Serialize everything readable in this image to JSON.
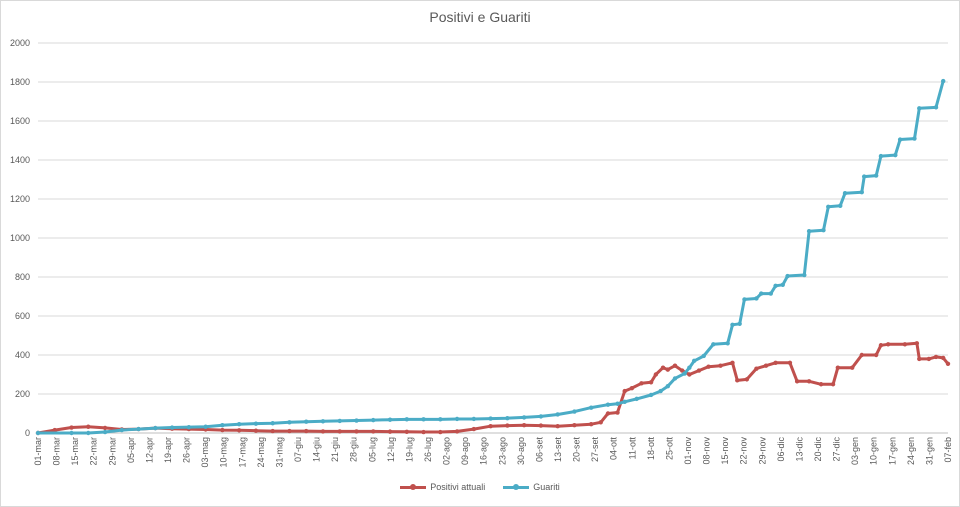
{
  "chart_data": {
    "type": "line",
    "title": "Positivi e Guariti",
    "ylim": [
      0,
      2000
    ],
    "y_ticks": [
      0,
      200,
      400,
      600,
      800,
      1000,
      1200,
      1400,
      1600,
      1800,
      2000
    ],
    "grid": true,
    "legend_position": "bottom",
    "x_start": "01-mar",
    "x_end": "07-feb",
    "categories": [
      "01-mar",
      "08-mar",
      "15-mar",
      "22-mar",
      "29-mar",
      "05-apr",
      "12-apr",
      "19-apr",
      "26-apr",
      "03-mag",
      "10-mag",
      "17-mag",
      "24-mag",
      "31-mag",
      "07-giu",
      "14-giu",
      "21-giu",
      "28-giu",
      "05-lug",
      "12-lug",
      "19-lug",
      "26-lug",
      "02-ago",
      "09-ago",
      "16-ago",
      "23-ago",
      "30-ago",
      "06-set",
      "13-set",
      "20-set",
      "27-set",
      "04-ott",
      "11-ott",
      "18-ott",
      "25-ott",
      "01-nov",
      "08-nov",
      "15-nov",
      "22-nov",
      "29-nov",
      "06-dic",
      "13-dic",
      "20-dic",
      "27-dic",
      "03-gen",
      "10-gen",
      "17-gen",
      "24-gen",
      "31-gen",
      "07-feb"
    ],
    "series": [
      {
        "name": "Positivi attuali",
        "color": "#c0504d",
        "points": [
          [
            0,
            0
          ],
          [
            7,
            15
          ],
          [
            14,
            28
          ],
          [
            21,
            32
          ],
          [
            28,
            26
          ],
          [
            35,
            18
          ],
          [
            42,
            20
          ],
          [
            49,
            25
          ],
          [
            56,
            22
          ],
          [
            63,
            20
          ],
          [
            70,
            18
          ],
          [
            77,
            15
          ],
          [
            84,
            14
          ],
          [
            91,
            12
          ],
          [
            98,
            10
          ],
          [
            105,
            10
          ],
          [
            112,
            10
          ],
          [
            119,
            8
          ],
          [
            126,
            8
          ],
          [
            133,
            8
          ],
          [
            140,
            8
          ],
          [
            147,
            7
          ],
          [
            154,
            6
          ],
          [
            161,
            5
          ],
          [
            168,
            5
          ],
          [
            175,
            8
          ],
          [
            182,
            20
          ],
          [
            189,
            35
          ],
          [
            196,
            38
          ],
          [
            203,
            40
          ],
          [
            210,
            38
          ],
          [
            217,
            35
          ],
          [
            224,
            40
          ],
          [
            231,
            45
          ],
          [
            235,
            55
          ],
          [
            238,
            100
          ],
          [
            242,
            105
          ],
          [
            245,
            215
          ],
          [
            248,
            230
          ],
          [
            252,
            255
          ],
          [
            256,
            260
          ],
          [
            258,
            300
          ],
          [
            261,
            335
          ],
          [
            263,
            325
          ],
          [
            266,
            345
          ],
          [
            269,
            320
          ],
          [
            272,
            300
          ],
          [
            276,
            320
          ],
          [
            280,
            340
          ],
          [
            285,
            345
          ],
          [
            290,
            360
          ],
          [
            292,
            270
          ],
          [
            296,
            275
          ],
          [
            300,
            330
          ],
          [
            304,
            345
          ],
          [
            308,
            360
          ],
          [
            314,
            360
          ],
          [
            317,
            265
          ],
          [
            322,
            265
          ],
          [
            327,
            250
          ],
          [
            332,
            250
          ],
          [
            334,
            335
          ],
          [
            340,
            335
          ],
          [
            344,
            400
          ],
          [
            350,
            400
          ],
          [
            352,
            450
          ],
          [
            355,
            455
          ],
          [
            362,
            455
          ],
          [
            367,
            460
          ],
          [
            368,
            380
          ],
          [
            372,
            380
          ],
          [
            375,
            390
          ],
          [
            378,
            385
          ],
          [
            380,
            355
          ]
        ]
      },
      {
        "name": "Guariti",
        "color": "#4bacc6",
        "points": [
          [
            0,
            0
          ],
          [
            14,
            0
          ],
          [
            21,
            0
          ],
          [
            28,
            5
          ],
          [
            35,
            15
          ],
          [
            42,
            20
          ],
          [
            49,
            25
          ],
          [
            56,
            28
          ],
          [
            63,
            30
          ],
          [
            70,
            32
          ],
          [
            77,
            40
          ],
          [
            84,
            45
          ],
          [
            91,
            48
          ],
          [
            98,
            50
          ],
          [
            105,
            55
          ],
          [
            112,
            58
          ],
          [
            119,
            60
          ],
          [
            126,
            62
          ],
          [
            133,
            64
          ],
          [
            140,
            66
          ],
          [
            147,
            68
          ],
          [
            154,
            70
          ],
          [
            161,
            70
          ],
          [
            168,
            70
          ],
          [
            175,
            72
          ],
          [
            182,
            72
          ],
          [
            189,
            74
          ],
          [
            196,
            76
          ],
          [
            203,
            80
          ],
          [
            210,
            85
          ],
          [
            217,
            95
          ],
          [
            224,
            110
          ],
          [
            231,
            130
          ],
          [
            238,
            145
          ],
          [
            242,
            150
          ],
          [
            245,
            160
          ],
          [
            250,
            175
          ],
          [
            256,
            195
          ],
          [
            260,
            215
          ],
          [
            263,
            240
          ],
          [
            266,
            280
          ],
          [
            270,
            305
          ],
          [
            272,
            335
          ],
          [
            274,
            370
          ],
          [
            278,
            395
          ],
          [
            282,
            455
          ],
          [
            288,
            460
          ],
          [
            290,
            555
          ],
          [
            293,
            560
          ],
          [
            295,
            685
          ],
          [
            300,
            690
          ],
          [
            302,
            715
          ],
          [
            306,
            715
          ],
          [
            308,
            755
          ],
          [
            311,
            760
          ],
          [
            313,
            805
          ],
          [
            320,
            810
          ],
          [
            322,
            1035
          ],
          [
            328,
            1040
          ],
          [
            330,
            1160
          ],
          [
            335,
            1165
          ],
          [
            337,
            1230
          ],
          [
            344,
            1235
          ],
          [
            345,
            1315
          ],
          [
            350,
            1320
          ],
          [
            352,
            1420
          ],
          [
            358,
            1425
          ],
          [
            360,
            1505
          ],
          [
            366,
            1510
          ],
          [
            368,
            1665
          ],
          [
            375,
            1670
          ],
          [
            378,
            1805
          ]
        ]
      }
    ]
  }
}
